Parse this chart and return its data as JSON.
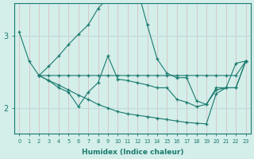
{
  "xlabel": "Humidex (Indice chaleur)",
  "background_color": "#d4eeea",
  "grid_color_major": "#c0dcd8",
  "grid_color_minor": "#dff0ed",
  "line_color": "#1a7a6e",
  "xlim": [
    -0.5,
    23.5
  ],
  "ylim": [
    1.65,
    3.45
  ],
  "yticks": [
    2,
    3
  ],
  "xticks": [
    0,
    1,
    2,
    3,
    4,
    5,
    6,
    7,
    8,
    9,
    10,
    11,
    12,
    13,
    14,
    15,
    16,
    17,
    18,
    19,
    20,
    21,
    22,
    23
  ],
  "lines": [
    {
      "x": [
        0,
        1,
        2,
        3,
        4,
        5,
        6,
        7,
        8,
        9,
        10,
        11,
        12,
        13,
        14,
        15,
        16,
        17,
        18,
        19,
        20,
        21,
        22,
        23
      ],
      "y": [
        3.05,
        2.65,
        2.45,
        2.58,
        2.72,
        2.88,
        3.02,
        3.15,
        3.38,
        3.52,
        3.55,
        3.6,
        3.65,
        3.15,
        2.68,
        2.48,
        2.42,
        2.42,
        2.1,
        2.05,
        2.28,
        2.28,
        2.62,
        2.65
      ]
    },
    {
      "x": [
        2,
        3,
        4,
        5,
        6,
        7,
        8,
        9,
        10,
        11,
        12,
        13,
        14,
        15,
        16,
        17,
        18,
        19,
        20,
        21,
        22,
        23
      ],
      "y": [
        2.45,
        2.45,
        2.45,
        2.45,
        2.45,
        2.45,
        2.45,
        2.45,
        2.45,
        2.45,
        2.45,
        2.45,
        2.45,
        2.45,
        2.45,
        2.45,
        2.45,
        2.45,
        2.45,
        2.45,
        2.45,
        2.65
      ]
    },
    {
      "x": [
        2,
        3,
        4,
        5,
        6,
        7,
        8,
        9,
        10,
        11,
        12,
        13,
        14,
        15,
        16,
        17,
        18,
        19,
        20,
        21,
        22,
        23
      ],
      "y": [
        2.45,
        2.38,
        2.28,
        2.22,
        2.02,
        2.22,
        2.35,
        2.72,
        2.4,
        2.38,
        2.35,
        2.32,
        2.28,
        2.28,
        2.12,
        2.08,
        2.02,
        2.05,
        2.25,
        2.28,
        2.28,
        2.65
      ]
    },
    {
      "x": [
        2,
        3,
        4,
        5,
        6,
        7,
        8,
        9,
        10,
        11,
        12,
        13,
        14,
        15,
        16,
        17,
        18,
        19,
        20,
        21,
        22,
        23
      ],
      "y": [
        2.45,
        2.38,
        2.32,
        2.25,
        2.18,
        2.12,
        2.05,
        2.0,
        1.95,
        1.92,
        1.9,
        1.88,
        1.86,
        1.84,
        1.82,
        1.8,
        1.79,
        1.78,
        2.2,
        2.28,
        2.28,
        2.65
      ]
    }
  ]
}
